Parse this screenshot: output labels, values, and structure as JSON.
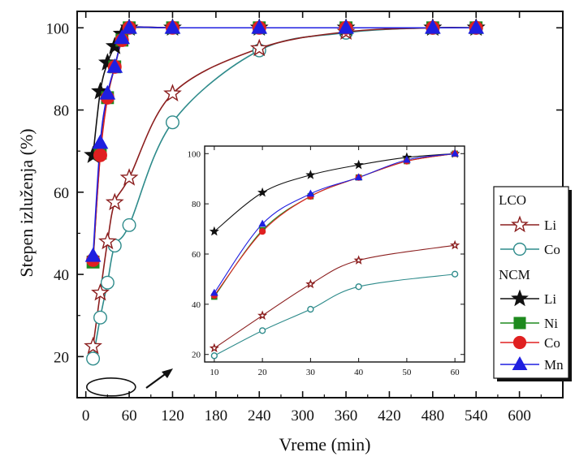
{
  "chart_data": [
    {
      "type": "line",
      "role": "main",
      "title": "",
      "xlabel": "Vreme (min)",
      "ylabel": "Stepen izluženja (%)",
      "xlim": [
        -12,
        660
      ],
      "ylim": [
        10,
        104
      ],
      "xticks": [
        0,
        60,
        120,
        180,
        240,
        300,
        360,
        420,
        480,
        540,
        600
      ],
      "yticks": [
        20,
        40,
        60,
        80,
        100
      ],
      "grid": false,
      "legend_position": "right",
      "legend_groups": [
        "LCO",
        "NCM"
      ],
      "series": [
        {
          "name": "Li",
          "group": "LCO",
          "marker": "star-open",
          "color": "#8b1e1e",
          "x": [
            10,
            20,
            30,
            40,
            60,
            120,
            240,
            360,
            480,
            540
          ],
          "y": [
            22.5,
            35.5,
            48,
            57.5,
            63.5,
            84,
            95,
            99,
            100,
            100
          ]
        },
        {
          "name": "Co",
          "group": "LCO",
          "marker": "circle-open",
          "color": "#2e8b8b",
          "x": [
            10,
            20,
            30,
            40,
            60,
            120,
            240,
            360,
            480,
            540
          ],
          "y": [
            19.5,
            29.5,
            38,
            47,
            52,
            77,
            94.5,
            98.8,
            100,
            100
          ]
        },
        {
          "name": "Li",
          "group": "NCM",
          "marker": "star",
          "color": "#111111",
          "x": [
            10,
            20,
            30,
            40,
            50,
            60,
            120,
            240,
            360,
            480,
            540
          ],
          "y": [
            69,
            84.5,
            91.5,
            95.5,
            98.5,
            100,
            100,
            100,
            100,
            100,
            100
          ]
        },
        {
          "name": "Ni",
          "group": "NCM",
          "marker": "square",
          "color": "#1e8a1e",
          "x": [
            10,
            20,
            30,
            40,
            50,
            60,
            120,
            240,
            360,
            480,
            540
          ],
          "y": [
            43,
            69.5,
            83,
            90.5,
            97,
            100,
            100,
            100,
            100,
            100,
            100
          ]
        },
        {
          "name": "Co",
          "group": "NCM",
          "marker": "circle",
          "color": "#e02020",
          "x": [
            10,
            20,
            30,
            40,
            50,
            60,
            120,
            240,
            360,
            480,
            540
          ],
          "y": [
            43.5,
            69,
            83,
            90.5,
            97,
            100,
            100,
            100,
            100,
            100,
            100
          ]
        },
        {
          "name": "Mn",
          "group": "NCM",
          "marker": "triangle",
          "color": "#1f1fe0",
          "x": [
            10,
            20,
            30,
            40,
            50,
            60,
            120,
            240,
            360,
            480,
            540
          ],
          "y": [
            44.5,
            72,
            84,
            90.5,
            97.5,
            100,
            100,
            100,
            100,
            100,
            100
          ]
        }
      ]
    },
    {
      "type": "line",
      "role": "inset",
      "xlabel": "",
      "ylabel": "",
      "xlim": [
        8,
        62
      ],
      "ylim": [
        17,
        103
      ],
      "xticks": [
        10,
        20,
        30,
        40,
        50,
        60
      ],
      "yticks": [
        20,
        40,
        60,
        80,
        100
      ],
      "grid": false,
      "series": [
        {
          "name": "Li",
          "group": "LCO",
          "marker": "star-open",
          "color": "#8b1e1e",
          "x": [
            10,
            20,
            30,
            40,
            60
          ],
          "y": [
            22.5,
            35.5,
            48,
            57.5,
            63.5
          ]
        },
        {
          "name": "Co",
          "group": "LCO",
          "marker": "circle-open",
          "color": "#2e8b8b",
          "x": [
            10,
            20,
            30,
            40,
            60
          ],
          "y": [
            19.5,
            29.5,
            38,
            47,
            52
          ]
        },
        {
          "name": "Li",
          "group": "NCM",
          "marker": "star",
          "color": "#111111",
          "x": [
            10,
            20,
            30,
            40,
            50,
            60
          ],
          "y": [
            69,
            84.5,
            91.5,
            95.5,
            98.5,
            100
          ]
        },
        {
          "name": "Ni",
          "group": "NCM",
          "marker": "square",
          "color": "#1e8a1e",
          "x": [
            10,
            20,
            30,
            40,
            50,
            60
          ],
          "y": [
            43,
            69.5,
            83,
            90.5,
            97,
            100
          ]
        },
        {
          "name": "Co",
          "group": "NCM",
          "marker": "circle",
          "color": "#e02020",
          "x": [
            10,
            20,
            30,
            40,
            50,
            60
          ],
          "y": [
            43.5,
            69,
            83,
            90.5,
            97,
            100
          ]
        },
        {
          "name": "Mn",
          "group": "NCM",
          "marker": "triangle",
          "color": "#1f1fe0",
          "x": [
            10,
            20,
            30,
            40,
            50,
            60
          ],
          "y": [
            44.5,
            72,
            84,
            90.5,
            97.5,
            100
          ]
        }
      ]
    }
  ]
}
